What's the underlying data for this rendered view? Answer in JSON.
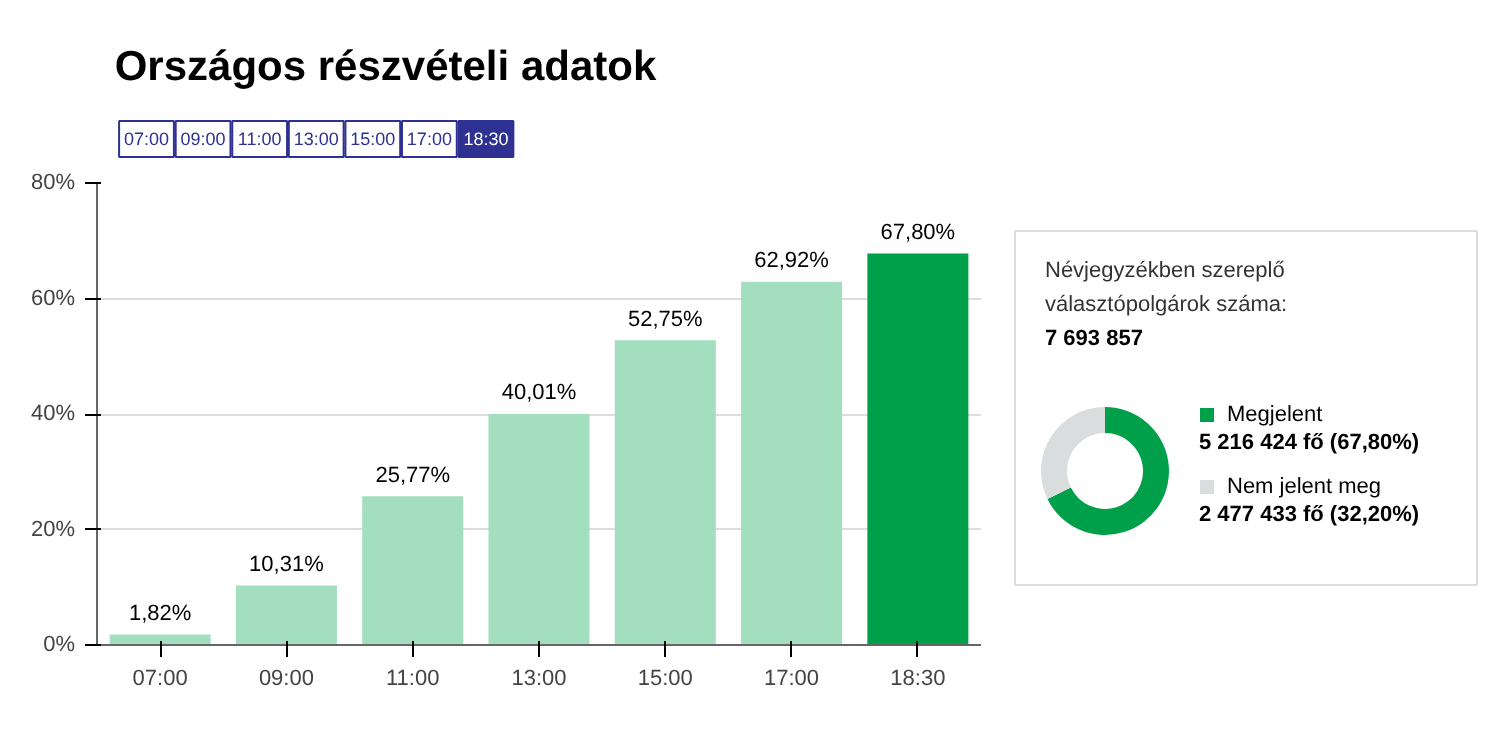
{
  "chart_data": [
    {
      "type": "bar",
      "title": "Országos részvételi adatok",
      "annotations": [
        "07:00",
        "09:00",
        "11:00",
        "13:00",
        "15:00",
        "17:00",
        "18:30"
      ],
      "categories": [
        "07:00",
        "09:00",
        "11:00",
        "13:00",
        "15:00",
        "17:00",
        "18:30"
      ],
      "values": [
        1.82,
        10.31,
        25.77,
        40.01,
        52.75,
        62.92,
        67.8
      ],
      "colors": [
        "#a3dfbf",
        "#a3dfbf",
        "#a3dfbf",
        "#a3dfbf",
        "#a3dfbf",
        "#a3dfbf",
        "#00a04a"
      ],
      "value_labels": [
        "1,82%",
        "10,31%",
        "25,77%",
        "40,01%",
        "52,75%",
        "62,92%",
        "67,80%"
      ],
      "ylim": [
        0,
        80
      ],
      "yticks": [
        {
          "value": 0,
          "label": "0%"
        },
        {
          "value": 20,
          "label": "20%"
        },
        {
          "value": 40,
          "label": "40%"
        },
        {
          "value": 60,
          "label": "60%"
        },
        {
          "value": 80,
          "label": "80%"
        }
      ],
      "grid": "y"
    },
    {
      "type": "donut",
      "title": "Névjegyzékben szereplő választópolgárok száma:",
      "subtitle": "7 693 857",
      "categories": [
        "Megjelent",
        "Nem jelent meg"
      ],
      "values": [
        5216424,
        2477433
      ],
      "colors": [
        "#00a04a",
        "#d9dddd"
      ],
      "value_labels": [
        "5 216 424 fő (67,80%)",
        "2 477 433 fő (32,20%)"
      ],
      "legend": "right"
    }
  ]
}
